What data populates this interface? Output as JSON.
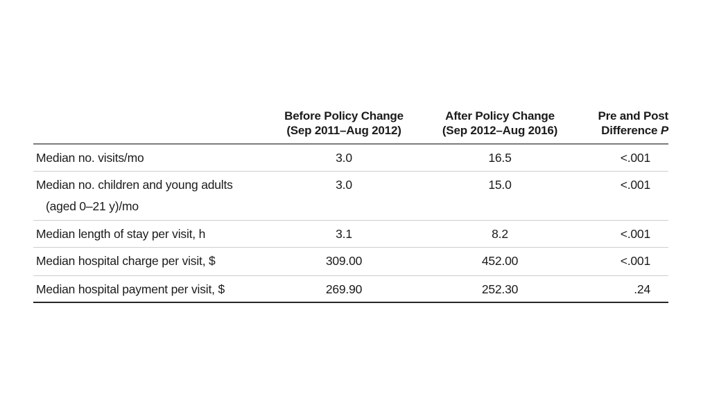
{
  "table": {
    "columns": [
      {
        "label_line1": "",
        "label_line2": ""
      },
      {
        "label_line1": "Before Policy Change",
        "label_line2": "(Sep 2011–Aug 2012)"
      },
      {
        "label_line1": "After Policy Change",
        "label_line2": "(Sep 2012–Aug 2016)"
      },
      {
        "label_line1": "Pre and Post",
        "label_line2_prefix": "Difference",
        "label_line2_italic": "P"
      }
    ],
    "rows": [
      {
        "label": "Median no. visits/mo",
        "before": "3.0",
        "after": "16.5",
        "p": "<.001"
      },
      {
        "label": "Median no. children and young adults",
        "label2": "(aged 0–21 y)/mo",
        "before": "3.0",
        "after": "15.0",
        "p": "<.001"
      },
      {
        "label": "Median length of stay per visit, h",
        "before": "3.1",
        "after": "8.2",
        "p": "<.001"
      },
      {
        "label": "Median hospital charge per visit, $",
        "before": "309.00",
        "after": "452.00",
        "p": "<.001"
      },
      {
        "label": "Median hospital payment per visit, $",
        "before": "269.90",
        "after": "252.30",
        "p": ".24"
      }
    ]
  },
  "colors": {
    "background": "#ffffff",
    "text": "#1b1b1b",
    "rule_header": "#7c7c7c",
    "rule_row": "#cdcdcd",
    "rule_bottom": "#262626"
  }
}
